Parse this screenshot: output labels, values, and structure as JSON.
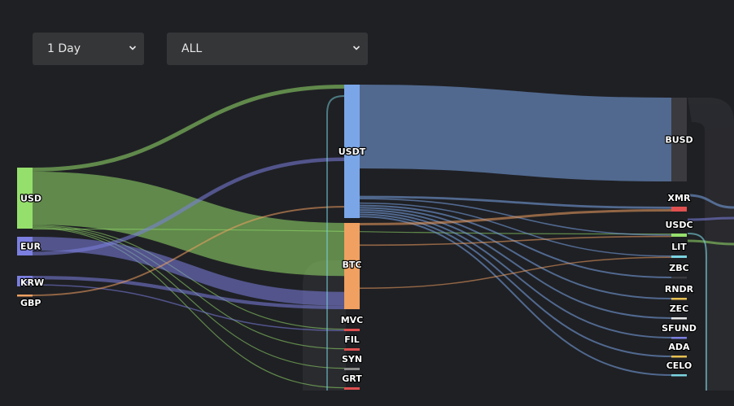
{
  "filters": {
    "period": "1 Day",
    "market": "ALL"
  },
  "diagram": {
    "type": "sankey",
    "columns": [
      [
        "USD",
        "EUR",
        "KRW",
        "GBP"
      ],
      [
        "USDT",
        "BTC",
        "MVC",
        "FIL",
        "SYN",
        "GRT"
      ],
      [
        "BUSD",
        "XMR",
        "USDC",
        "LIT",
        "ZBC",
        "RNDR",
        "ZEC",
        "SFUND",
        "ADA",
        "CELO"
      ]
    ],
    "colors": {
      "USD": "#95e06c",
      "EUR": "#7b7fe0",
      "KRW": "#7b7fe0",
      "GBP": "#f0a060",
      "USDT": "#7aa6e8",
      "BTC": "#f0a060",
      "MVC": "#e05050",
      "FIL": "#e05050",
      "SYN": "#8a8a8a",
      "GRT": "#e05050",
      "BUSD": "#3a3a3f",
      "XMR": "#e05050",
      "USDC": "#95e06c",
      "LIT": "#7ad4e0",
      "ZBC": "#3a3a3f",
      "RNDR": "#e8c050",
      "ZEC": "#e8e8e8",
      "SFUND": "#7b7fe0",
      "ADA": "#e8c050",
      "CELO": "#7ad4e0"
    },
    "links": [
      {
        "source": "USD",
        "target": "USDT",
        "value": 3
      },
      {
        "source": "USD",
        "target": "BTC",
        "value": 40
      },
      {
        "source": "USD",
        "target": "MVC",
        "value": 0.5
      },
      {
        "source": "USD",
        "target": "FIL",
        "value": 0.5
      },
      {
        "source": "USD",
        "target": "SYN",
        "value": 0.5
      },
      {
        "source": "USD",
        "target": "GRT",
        "value": 0.5
      },
      {
        "source": "USD",
        "target": "USDC",
        "value": 1
      },
      {
        "source": "EUR",
        "target": "BTC",
        "value": 8
      },
      {
        "source": "EUR",
        "target": "USDT",
        "value": 2
      },
      {
        "source": "KRW",
        "target": "BTC",
        "value": 2
      },
      {
        "source": "KRW",
        "target": "MVC",
        "value": 0.5
      },
      {
        "source": "GBP",
        "target": "USDT",
        "value": 0.5
      },
      {
        "source": "USDT",
        "target": "BUSD",
        "value": 50
      },
      {
        "source": "USDT",
        "target": "XMR",
        "value": 1
      },
      {
        "source": "USDT",
        "target": "USDC",
        "value": 2
      },
      {
        "source": "USDT",
        "target": "LIT",
        "value": 1
      },
      {
        "source": "USDT",
        "target": "ZBC",
        "value": 1
      },
      {
        "source": "USDT",
        "target": "RNDR",
        "value": 1
      },
      {
        "source": "USDT",
        "target": "ZEC",
        "value": 1
      },
      {
        "source": "USDT",
        "target": "SFUND",
        "value": 1
      },
      {
        "source": "USDT",
        "target": "ADA",
        "value": 1
      },
      {
        "source": "USDT",
        "target": "CELO",
        "value": 1
      },
      {
        "source": "BTC",
        "target": "XMR",
        "value": 1
      },
      {
        "source": "BTC",
        "target": "USDC",
        "value": 2
      },
      {
        "source": "BTC",
        "target": "LIT",
        "value": 1
      }
    ]
  }
}
